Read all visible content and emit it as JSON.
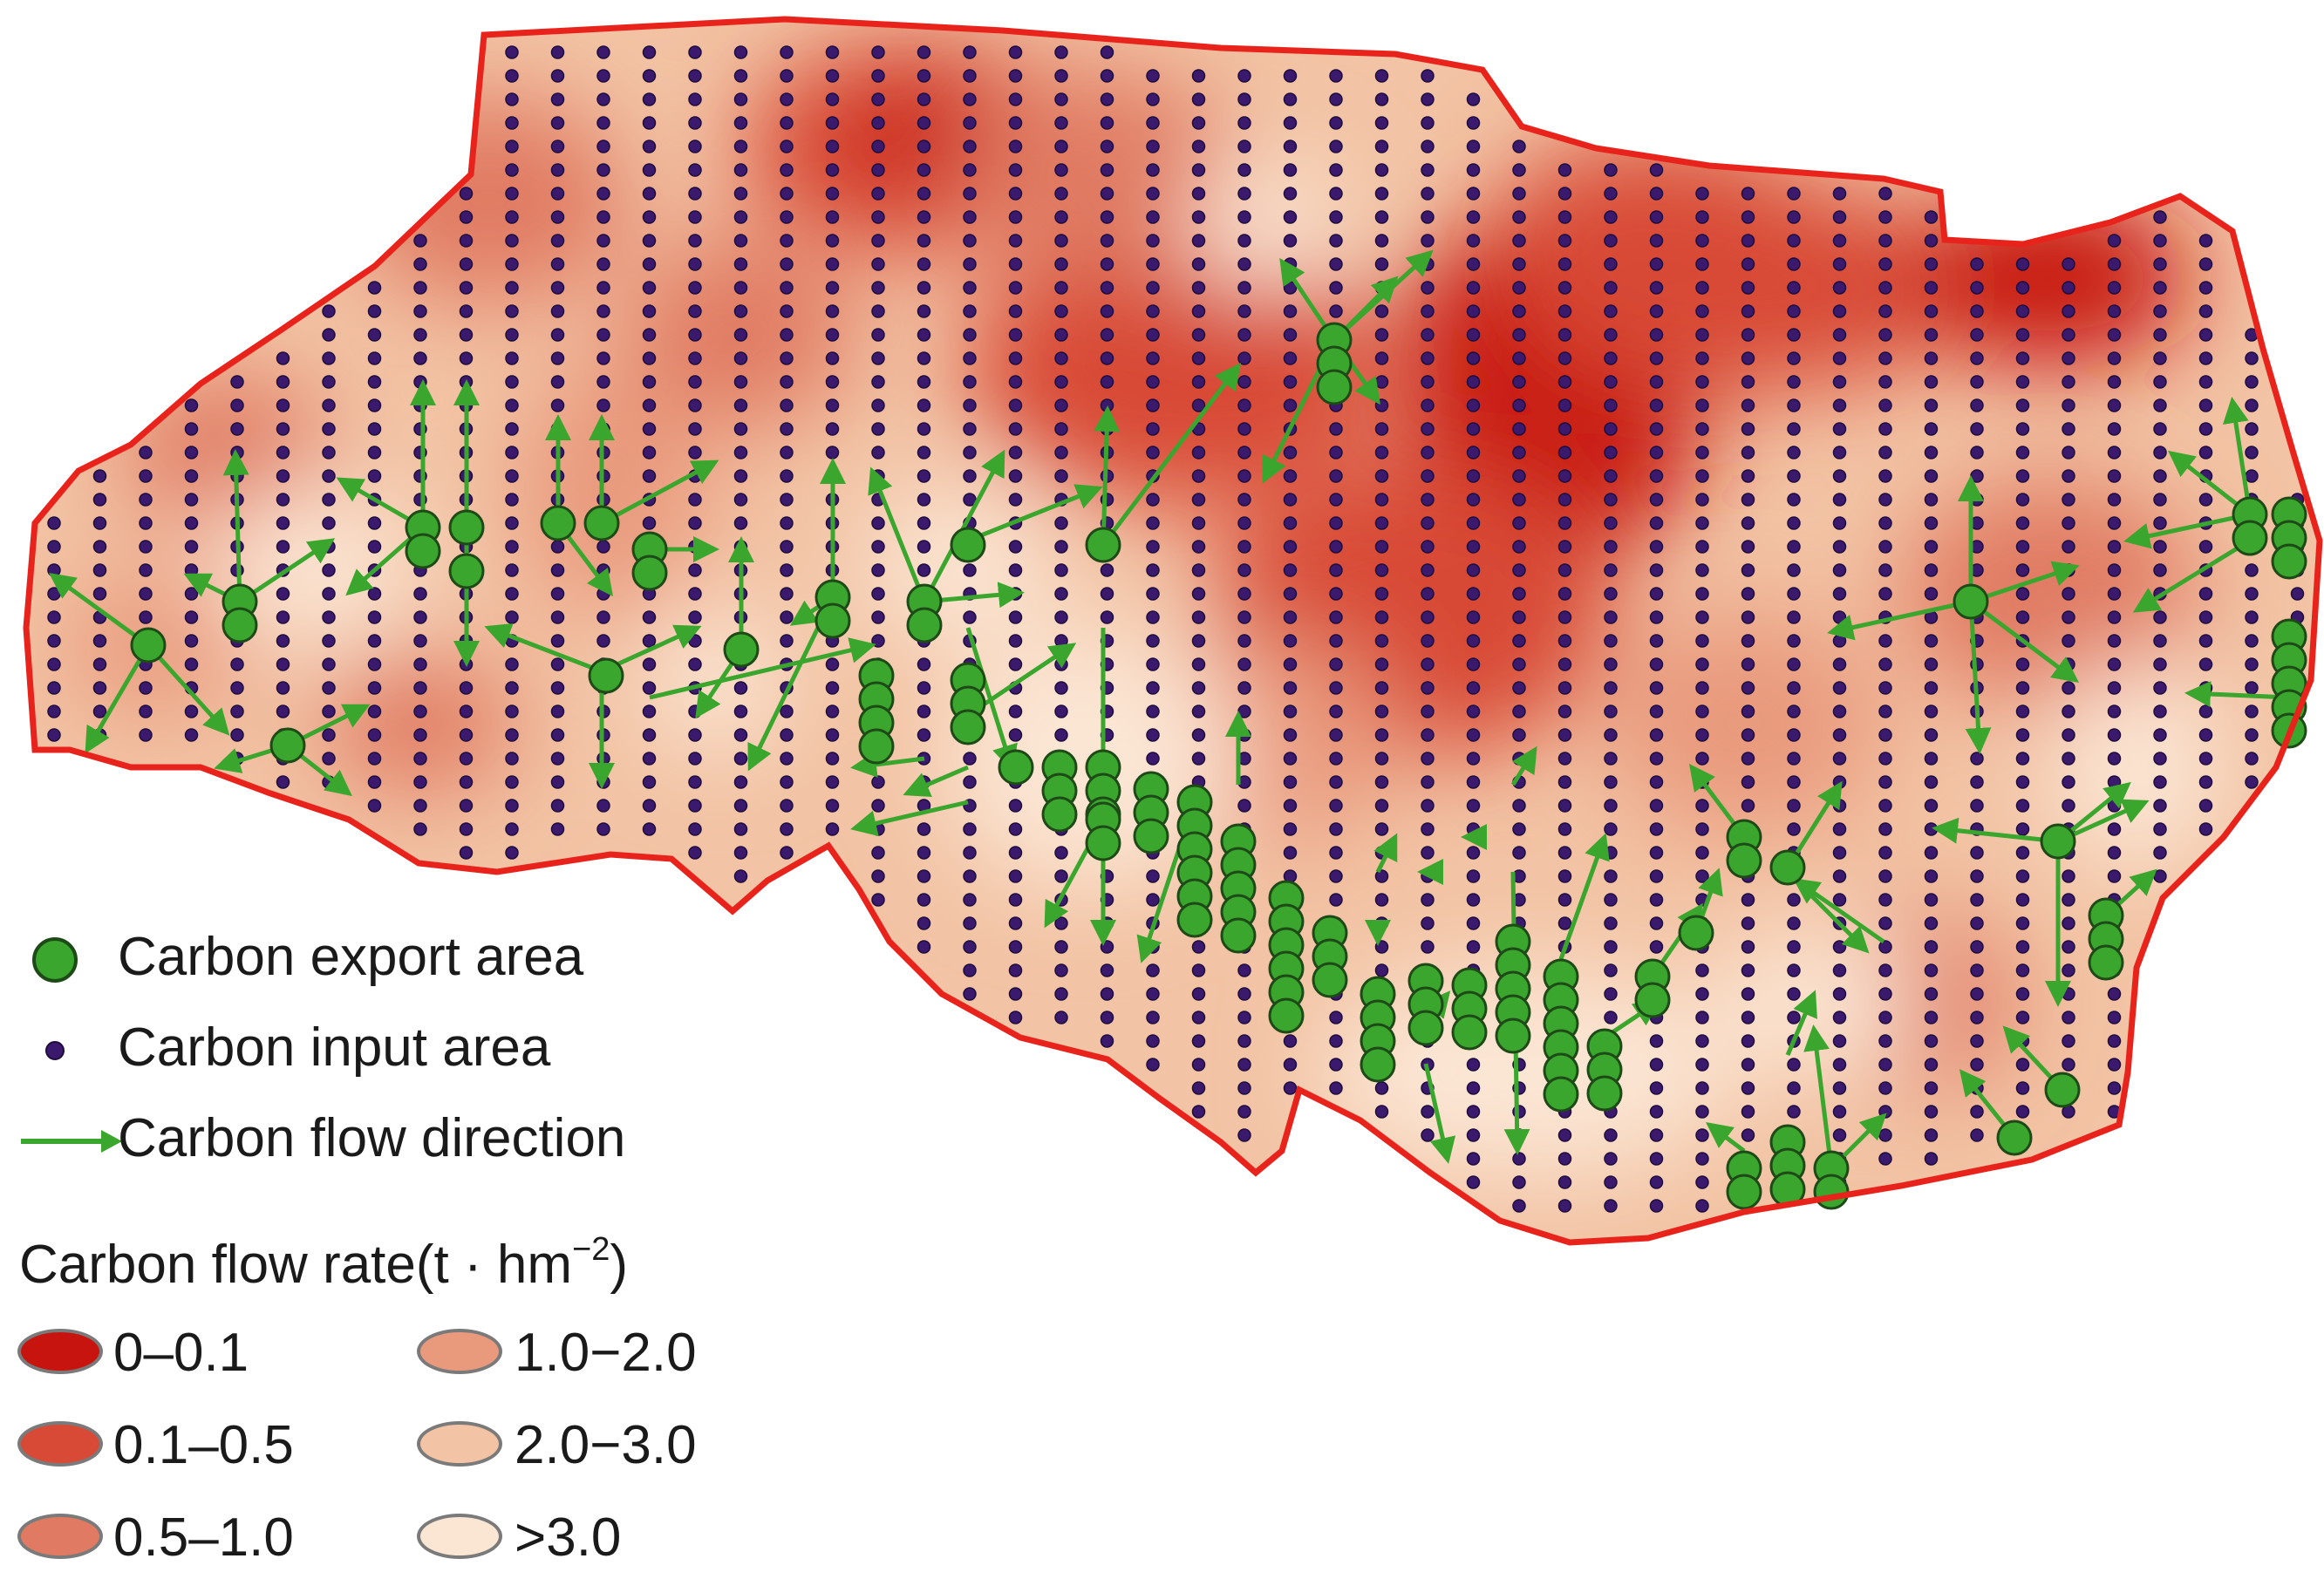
{
  "map": {
    "boundary_color": "#e8231c",
    "input_dot_color": "#3b1a6e",
    "export_dot_color": "#3aa62d",
    "arrow_color": "#3aa62d"
  },
  "legend": {
    "items": [
      {
        "label": "Carbon export area",
        "icon": "green-circle-icon"
      },
      {
        "label": "Carbon input area",
        "icon": "purple-dot-icon"
      },
      {
        "label": "Carbon flow direction",
        "icon": "green-arrow-icon"
      }
    ],
    "title_main": "Carbon flow rate(t · hm",
    "title_sup": "−2",
    "title_close": ")",
    "classes": [
      {
        "label": "0–0.1",
        "color": "#c8140f"
      },
      {
        "label": "1.0−2.0",
        "color": "#e99a7d"
      },
      {
        "label": "0.1–0.5",
        "color": "#d84a35"
      },
      {
        "label": "2.0−3.0",
        "color": "#f2c3a4"
      },
      {
        "label": "0.5–1.0",
        "color": "#e07a62"
      },
      {
        "label": ">3.0",
        "color": "#fbe6d4"
      }
    ]
  }
}
